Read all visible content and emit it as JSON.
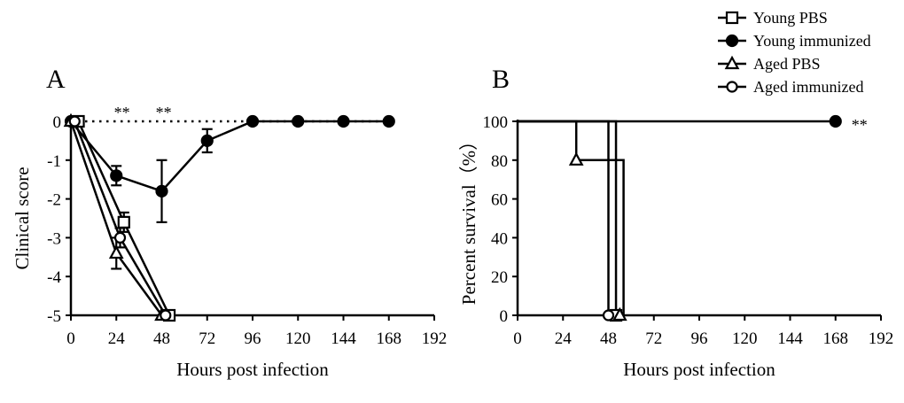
{
  "legend": {
    "items": [
      {
        "label": "Young PBS",
        "marker": "square-open"
      },
      {
        "label": "Young immunized",
        "marker": "circle-filled"
      },
      {
        "label": "Aged PBS",
        "marker": "triangle-open"
      },
      {
        "label": "Aged immunized",
        "marker": "circle-open"
      }
    ]
  },
  "colors": {
    "line": "#000000",
    "background": "#ffffff"
  },
  "chart_data": [
    {
      "panel": "A",
      "type": "line",
      "xlabel": "Hours post infection",
      "ylabel": "Clinical score",
      "xlim": [
        0,
        192
      ],
      "ylim": [
        -5,
        0
      ],
      "xticks": [
        0,
        24,
        48,
        72,
        96,
        120,
        144,
        168,
        192
      ],
      "yticks": [
        0,
        -1,
        -2,
        -3,
        -4,
        -5
      ],
      "reference_line": {
        "y": 0,
        "style": "dotted"
      },
      "significance": [
        {
          "x": 27,
          "text": "**"
        },
        {
          "x": 49,
          "text": "**"
        }
      ],
      "series": [
        {
          "name": "Young PBS",
          "marker": "square-open",
          "x": [
            4,
            28,
            52
          ],
          "y": [
            0,
            -2.6,
            -5
          ],
          "err": [
            0,
            0.25,
            0
          ]
        },
        {
          "name": "Young immunized",
          "marker": "circle-filled",
          "x": [
            0,
            24,
            48,
            72,
            96,
            120,
            144,
            168
          ],
          "y": [
            0,
            -1.4,
            -1.8,
            -0.5,
            0,
            0,
            0,
            0
          ],
          "err": [
            0,
            0.25,
            0.8,
            0.3,
            0,
            0,
            0,
            0
          ]
        },
        {
          "name": "Aged PBS",
          "marker": "triangle-open",
          "x": [
            0,
            24,
            48
          ],
          "y": [
            0,
            -3.4,
            -5
          ],
          "err": [
            0,
            0.4,
            0
          ]
        },
        {
          "name": "Aged immunized",
          "marker": "circle-open",
          "x": [
            2,
            26,
            50
          ],
          "y": [
            0,
            -3,
            -5
          ],
          "err": [
            0,
            0.25,
            0
          ]
        }
      ]
    },
    {
      "panel": "B",
      "type": "line",
      "step": true,
      "xlabel": "Hours post infection",
      "ylabel": "Percent survival（%）",
      "xlim": [
        0,
        192
      ],
      "ylim": [
        0,
        100
      ],
      "xticks": [
        0,
        24,
        48,
        72,
        96,
        120,
        144,
        168,
        192
      ],
      "yticks": [
        0,
        20,
        40,
        60,
        80,
        100
      ],
      "significance": [
        {
          "x": 168,
          "y": 100,
          "text": "**"
        }
      ],
      "series": [
        {
          "name": "Young PBS",
          "marker": "square-open",
          "x": [
            0,
            52,
            52
          ],
          "y": [
            100,
            100,
            0
          ],
          "markers": [
            [
              52,
              0
            ]
          ]
        },
        {
          "name": "Young immunized",
          "marker": "circle-filled",
          "x": [
            0,
            168
          ],
          "y": [
            100,
            100
          ],
          "markers": [
            [
              168,
              100
            ]
          ]
        },
        {
          "name": "Aged PBS",
          "marker": "triangle-open",
          "x": [
            0,
            31,
            31,
            56,
            56
          ],
          "y": [
            100,
            100,
            80,
            80,
            0
          ],
          "markers": [
            [
              31,
              80
            ],
            [
              54,
              0
            ]
          ]
        },
        {
          "name": "Aged immunized",
          "marker": "circle-open",
          "x": [
            0,
            48,
            48
          ],
          "y": [
            100,
            100,
            0
          ],
          "markers": [
            [
              48,
              0
            ]
          ]
        }
      ]
    }
  ]
}
